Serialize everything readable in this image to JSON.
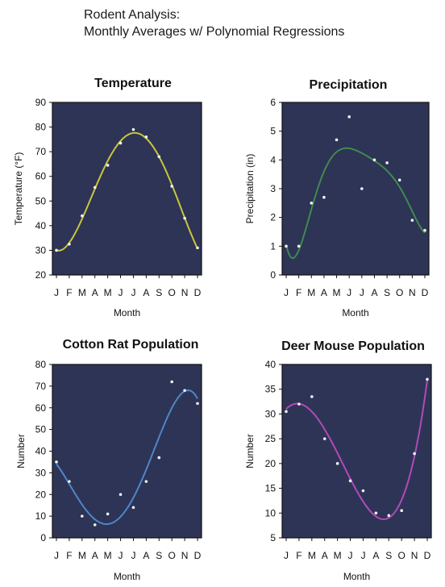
{
  "header": {
    "title_line1": "Rodent Analysis:",
    "title_line2": "Monthly Averages w/ Polynomial Regressions"
  },
  "colors": {
    "plot_background": "#2e3456",
    "point_color": "#f2f2f2"
  },
  "chart_data": [
    {
      "type": "scatter",
      "title": "Temperature",
      "xlabel": "Month",
      "ylabel": "Temperature (°F)",
      "categories": [
        "J",
        "F",
        "M",
        "A",
        "M",
        "J",
        "J",
        "A",
        "S",
        "O",
        "N",
        "D"
      ],
      "yticks": [
        "20",
        "30",
        "40",
        "50",
        "60",
        "70",
        "80",
        "90"
      ],
      "ylim": [
        20,
        90
      ],
      "series": [
        {
          "values": [
            30,
            32.5,
            44,
            55.5,
            64.5,
            73.5,
            79,
            76,
            68,
            56,
            43,
            31
          ],
          "fit_color": "#c9c63a"
        }
      ]
    },
    {
      "type": "scatter",
      "title": "Precipitation",
      "xlabel": "Month",
      "ylabel": "Precipitation (in)",
      "categories": [
        "J",
        "F",
        "M",
        "A",
        "M",
        "J",
        "J",
        "A",
        "S",
        "O",
        "N",
        "D"
      ],
      "yticks": [
        "0",
        "1",
        "2",
        "3",
        "4",
        "5",
        "6"
      ],
      "ylim": [
        0,
        6
      ],
      "series": [
        {
          "values": [
            1.0,
            1.0,
            2.5,
            2.7,
            4.7,
            5.5,
            3.0,
            4.0,
            3.9,
            3.3,
            1.9,
            1.55
          ],
          "fit_color": "#3f8a4f"
        }
      ]
    },
    {
      "type": "scatter",
      "title": "Cotton Rat Population",
      "xlabel": "Month",
      "ylabel": "Number",
      "categories": [
        "J",
        "F",
        "M",
        "A",
        "M",
        "J",
        "J",
        "A",
        "S",
        "O",
        "N",
        "D"
      ],
      "yticks": [
        "0",
        "10",
        "20",
        "30",
        "40",
        "50",
        "60",
        "70",
        "80"
      ],
      "ylim": [
        0,
        80
      ],
      "series": [
        {
          "values": [
            35,
            26,
            10,
            6,
            11,
            20,
            14,
            26,
            37,
            72,
            68,
            62
          ],
          "fit_color": "#4f86c6"
        }
      ]
    },
    {
      "type": "scatter",
      "title": "Deer Mouse Population",
      "xlabel": "Month",
      "ylabel": "Number",
      "categories": [
        "J",
        "F",
        "M",
        "A",
        "M",
        "J",
        "J",
        "A",
        "S",
        "O",
        "N",
        "D"
      ],
      "yticks": [
        "5",
        "10",
        "15",
        "20",
        "25",
        "30",
        "35",
        "40"
      ],
      "ylim": [
        5,
        40
      ],
      "series": [
        {
          "values": [
            30.5,
            32,
            33.5,
            25,
            20,
            16.5,
            14.5,
            10,
            9.5,
            10.5,
            22,
            37
          ],
          "fit_color": "#b24ab8"
        }
      ]
    }
  ]
}
